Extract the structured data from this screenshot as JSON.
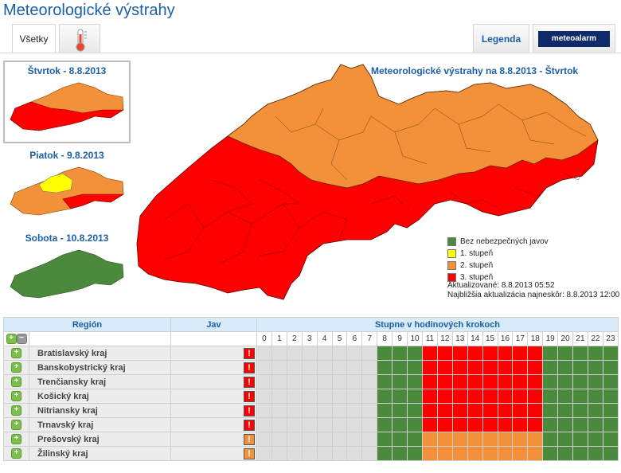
{
  "header": {
    "title": "Meteorologické výstrahy"
  },
  "tabs": {
    "all_label": "Všetky",
    "legend_label": "Legenda",
    "meteoalarm_label": "meteoalarm"
  },
  "thumbnails": [
    {
      "title": "Štvrtok - 8.8.2013",
      "selected": true
    },
    {
      "title": "Piatok - 9.8.2013",
      "selected": false
    },
    {
      "title": "Sobota - 10.8.2013",
      "selected": false
    }
  ],
  "map": {
    "title": "Meteorologické výstrahy na 8.8.2013 - Štvrtok"
  },
  "legend": [
    {
      "label": "Bez nebezpečných javov",
      "color": "#4b8a3d"
    },
    {
      "label": "1. stupeň",
      "color": "#ffff00"
    },
    {
      "label": "2. stupeň",
      "color": "#f29139"
    },
    {
      "label": "3. stupeň",
      "color": "#ff0000"
    }
  ],
  "updated": {
    "line1": "Aktualizované: 8.8.2013 05:52",
    "line2": "Najbližšia aktualizácia najneskôr: 8.8.2013 12:00"
  },
  "table": {
    "col_region": "Región",
    "col_phenomenon": "Jav",
    "col_hours": "Stupne v hodinových krokoch",
    "hours": [
      "0",
      "1",
      "2",
      "3",
      "4",
      "5",
      "6",
      "7",
      "8",
      "9",
      "10",
      "11",
      "12",
      "13",
      "14",
      "15",
      "16",
      "17",
      "18",
      "19",
      "20",
      "21",
      "22",
      "23"
    ],
    "rows": [
      {
        "region": "Bratislavský kraj",
        "level": 3,
        "levels": [
          0,
          0,
          0,
          0,
          0,
          0,
          0,
          0,
          "g",
          "g",
          "g",
          3,
          3,
          3,
          3,
          3,
          3,
          3,
          3,
          "g",
          "g",
          "g",
          "g",
          "g"
        ]
      },
      {
        "region": "Banskobystrický kraj",
        "level": 3,
        "levels": [
          0,
          0,
          0,
          0,
          0,
          0,
          0,
          0,
          "g",
          "g",
          "g",
          3,
          3,
          3,
          3,
          3,
          3,
          3,
          3,
          "g",
          "g",
          "g",
          "g",
          "g"
        ]
      },
      {
        "region": "Trenčiansky kraj",
        "level": 3,
        "levels": [
          0,
          0,
          0,
          0,
          0,
          0,
          0,
          0,
          "g",
          "g",
          "g",
          3,
          3,
          3,
          3,
          3,
          3,
          3,
          3,
          "g",
          "g",
          "g",
          "g",
          "g"
        ]
      },
      {
        "region": "Košický kraj",
        "level": 3,
        "levels": [
          0,
          0,
          0,
          0,
          0,
          0,
          0,
          0,
          "g",
          "g",
          "g",
          3,
          3,
          3,
          3,
          3,
          3,
          3,
          3,
          "g",
          "g",
          "g",
          "g",
          "g"
        ]
      },
      {
        "region": "Nitriansky kraj",
        "level": 3,
        "levels": [
          0,
          0,
          0,
          0,
          0,
          0,
          0,
          0,
          "g",
          "g",
          "g",
          3,
          3,
          3,
          3,
          3,
          3,
          3,
          3,
          "g",
          "g",
          "g",
          "g",
          "g"
        ]
      },
      {
        "region": "Trnavský kraj",
        "level": 3,
        "levels": [
          0,
          0,
          0,
          0,
          0,
          0,
          0,
          0,
          "g",
          "g",
          "g",
          3,
          3,
          3,
          3,
          3,
          3,
          3,
          3,
          "g",
          "g",
          "g",
          "g",
          "g"
        ]
      },
      {
        "region": "Prešovský kraj",
        "level": 2,
        "levels": [
          0,
          0,
          0,
          0,
          0,
          0,
          0,
          0,
          "g",
          "g",
          "g",
          2,
          2,
          2,
          2,
          2,
          2,
          2,
          2,
          "g",
          "g",
          "g",
          "g",
          "g"
        ]
      },
      {
        "region": "Žilinský kraj",
        "level": 2,
        "levels": [
          0,
          0,
          0,
          0,
          0,
          0,
          0,
          0,
          "g",
          "g",
          "g",
          2,
          2,
          2,
          2,
          2,
          2,
          2,
          2,
          "g",
          "g",
          "g",
          "g",
          "g"
        ]
      }
    ]
  }
}
